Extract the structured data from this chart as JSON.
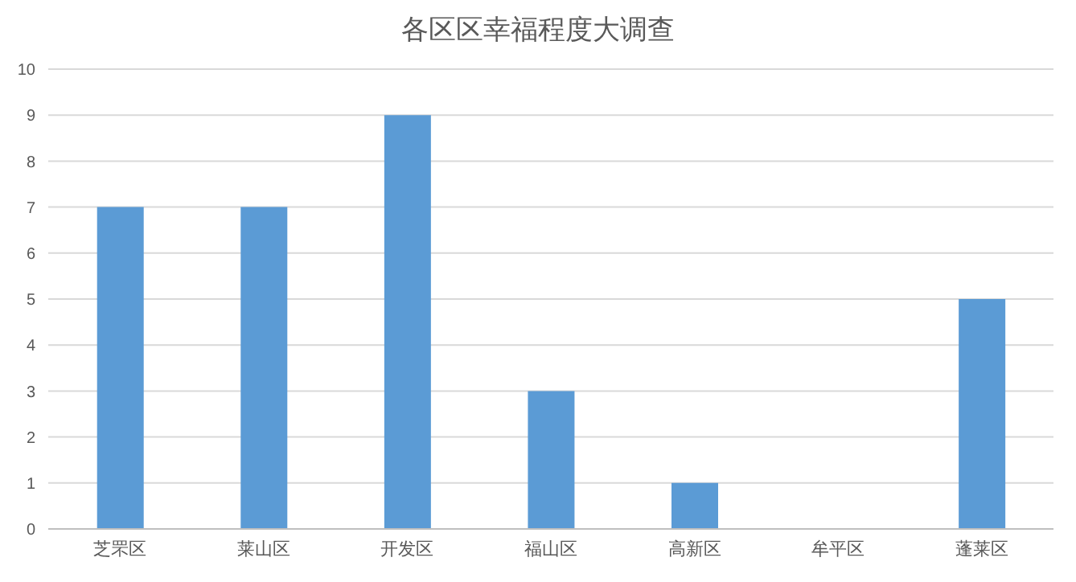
{
  "chart_data": {
    "type": "bar",
    "title": "各区区幸福程度大调查",
    "categories": [
      "芝罘区",
      "莱山区",
      "开发区",
      "福山区",
      "高新区",
      "牟平区",
      "蓬莱区"
    ],
    "values": [
      7,
      7,
      9,
      3,
      1,
      0,
      5
    ],
    "color": "#5b9bd5",
    "ylim": [
      0,
      10
    ],
    "yticks": [
      0,
      1,
      2,
      3,
      4,
      5,
      6,
      7,
      8,
      9,
      10
    ],
    "grid": "y",
    "legend": false
  }
}
